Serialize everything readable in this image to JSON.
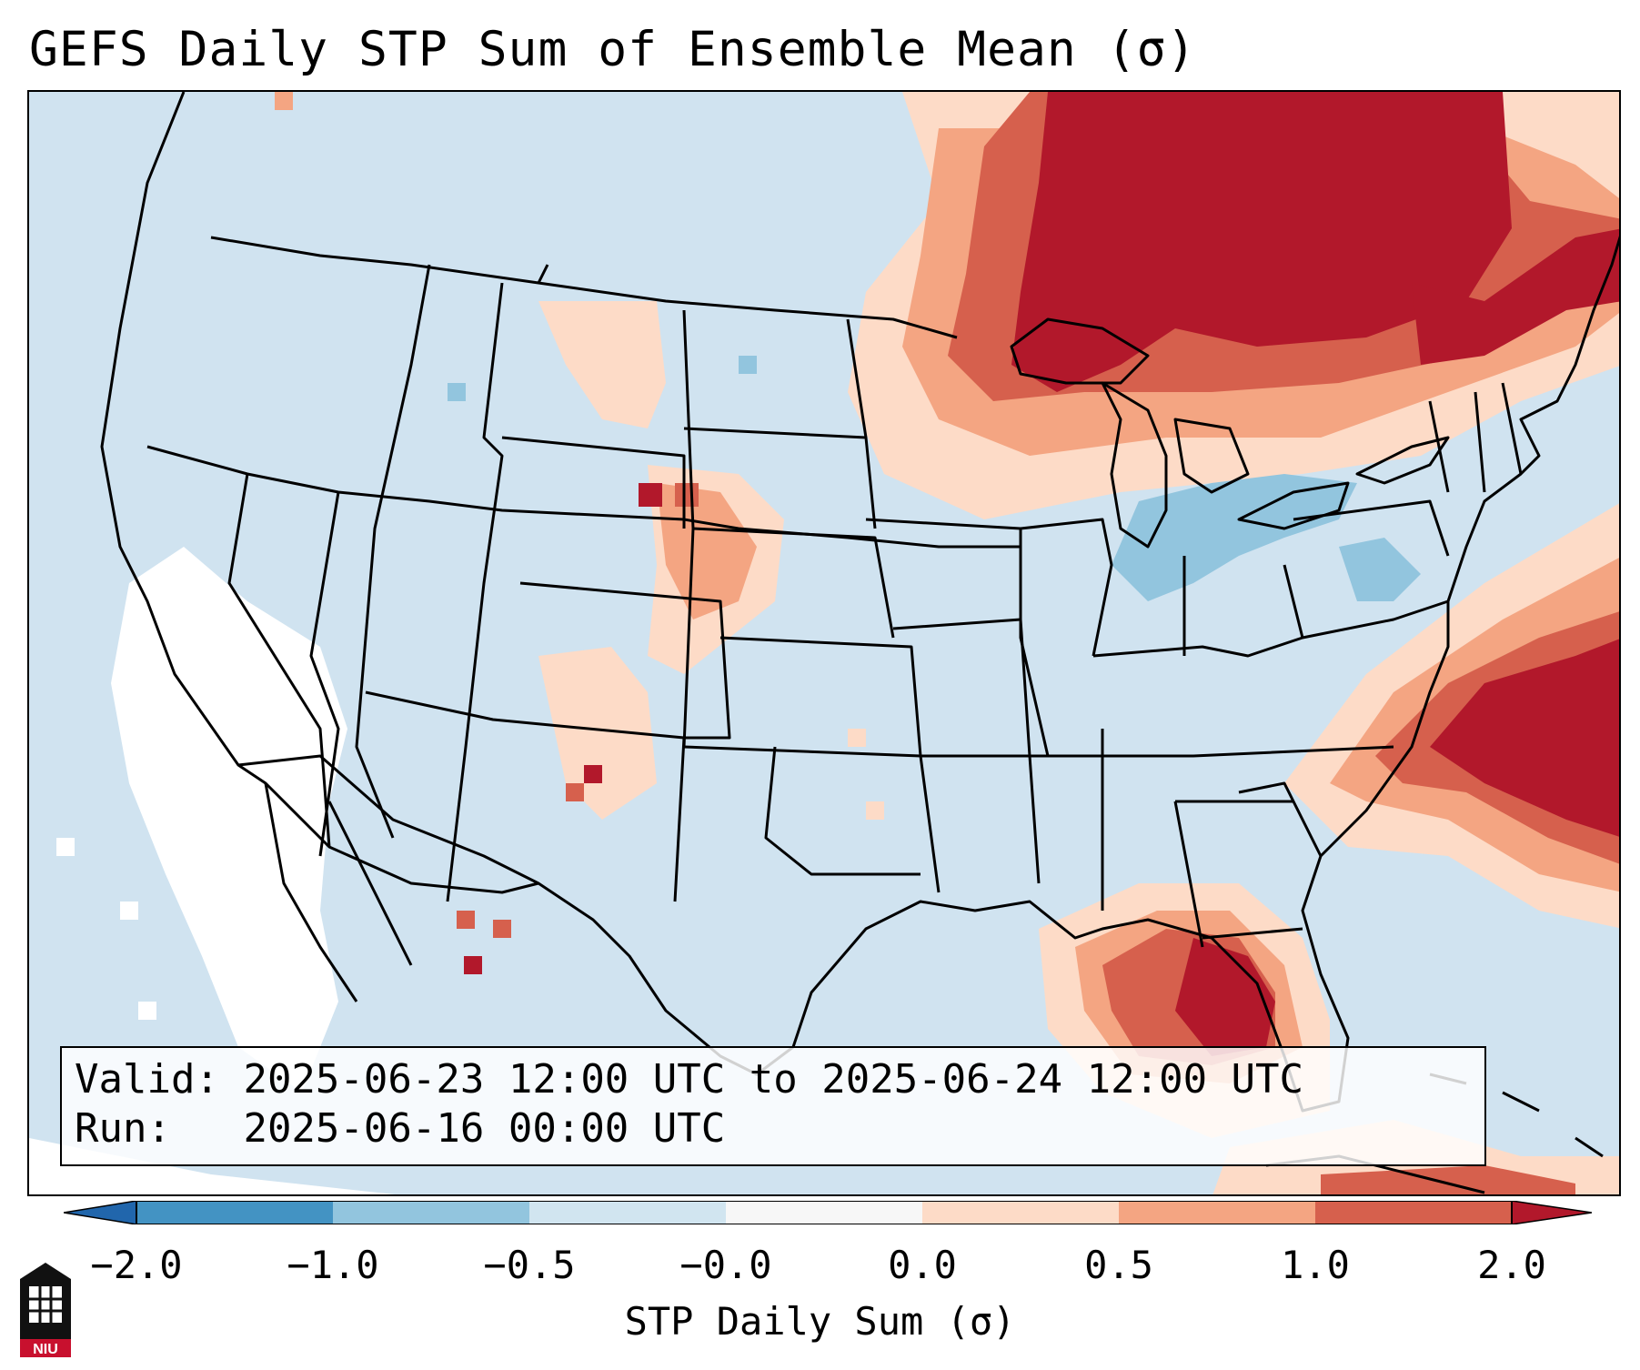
{
  "title": "GEFS Daily STP Sum of Ensemble Mean (σ)",
  "map": {
    "region": "Contiguous United States",
    "projection_note": "Lambert conformal",
    "colors": {
      "background": "#d0e3f0",
      "white_band": "#ffffff",
      "light_red": "#fddbc7",
      "med_red": "#f4a582",
      "dark_red": "#d6604d",
      "deep_red": "#b2182b",
      "light_blue": "#92c5de",
      "state_lines": "#000000"
    }
  },
  "info": {
    "valid_label": "Valid:",
    "valid_value": "2025-06-23 12:00 UTC to 2025-06-24 12:00 UTC",
    "run_label": "Run:",
    "run_value": "2025-06-16 00:00 UTC"
  },
  "colorbar": {
    "label": "STP Daily Sum (σ)",
    "ticks": [
      "−2.0",
      "−1.0",
      "−0.5",
      "−0.0",
      "0.0",
      "0.5",
      "1.0",
      "2.0"
    ],
    "segment_colors": [
      "#2166ac",
      "#4393c3",
      "#92c5de",
      "#d1e5f0",
      "#f7f7f7",
      "#fddbc7",
      "#f4a582",
      "#d6604d",
      "#b2182b"
    ]
  },
  "logo": {
    "text": "NIU",
    "icon": "niu-tower-icon"
  }
}
